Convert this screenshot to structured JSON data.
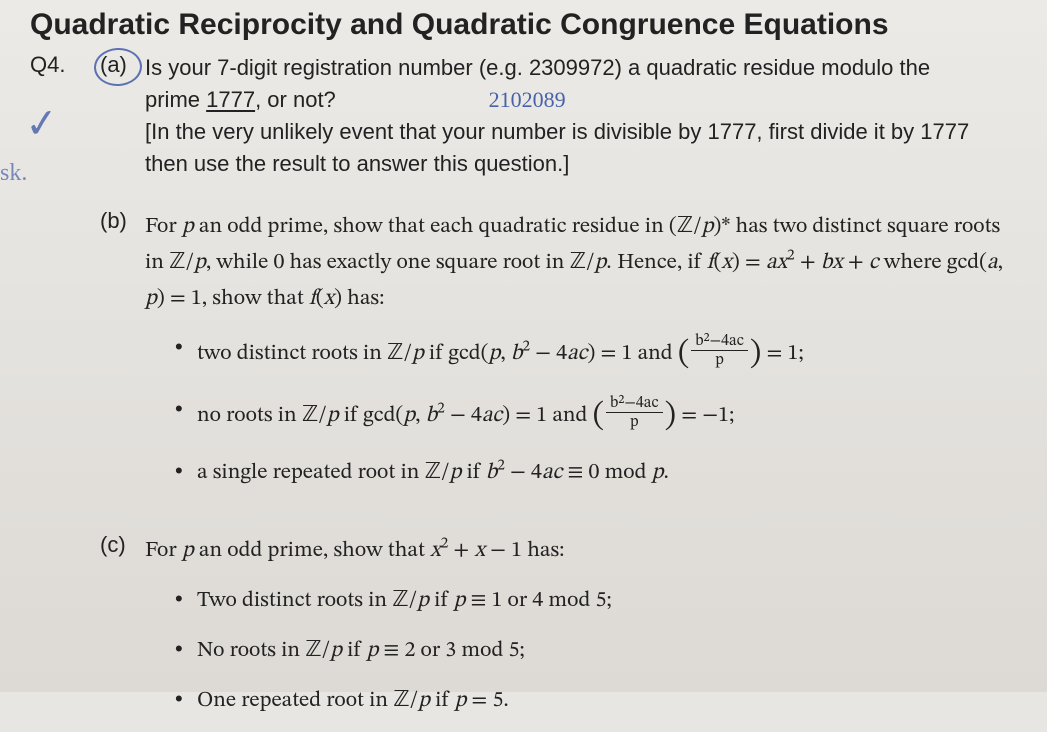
{
  "title": "Quadratic Reciprocity and Quadratic Congruence Equations",
  "q4": {
    "label": "Q4.",
    "a": {
      "label": "(a)",
      "line1_pre": "Is your 7-digit registration number (e.g. 2309972) a quadratic residue modulo the",
      "line2_pre": "prime ",
      "prime_underlined": "1777",
      "line2_post": ", or not?",
      "handwritten_number": "2102089",
      "note": "[In the very unlikely event that your number is divisible by 1777, first divide it by 1777 then use the result to answer this question.]"
    },
    "b": {
      "label": "(b)",
      "intro1": "For p an odd prime, show that each quadratic residue in (ℤ/p)* has two distinct square",
      "intro2": "roots in ℤ/p, while 0 has exactly one square root in ℤ/p. Hence, if f(x) = ax² + bx + c",
      "intro3": "where gcd(a, p) = 1, show that f(x) has:",
      "bullet1_pre": "two distinct roots in ℤ/p if gcd(p, b² − 4ac) = 1 and ",
      "bullet1_post": " = 1;",
      "bullet2_pre": "no roots in ℤ/p if gcd(p, b² − 4ac) = 1 and ",
      "bullet2_post": " = −1;",
      "bullet3": "a single repeated root in ℤ/p if b² − 4ac ≡ 0 mod p.",
      "legendre_num": "b²−4ac",
      "legendre_den": "p"
    },
    "c": {
      "label": "(c)",
      "intro": "For p an odd prime, show that x² + x − 1 has:",
      "bullet1": "Two distinct roots in ℤ/p if p ≡ 1 or 4 mod 5;",
      "bullet2": "No roots in ℤ/p if p ≡ 2 or 3 mod 5;",
      "bullet3": "One repeated root in ℤ/p if p = 5."
    }
  },
  "annotations": {
    "checkmark": "✓",
    "scribble": "sk."
  }
}
